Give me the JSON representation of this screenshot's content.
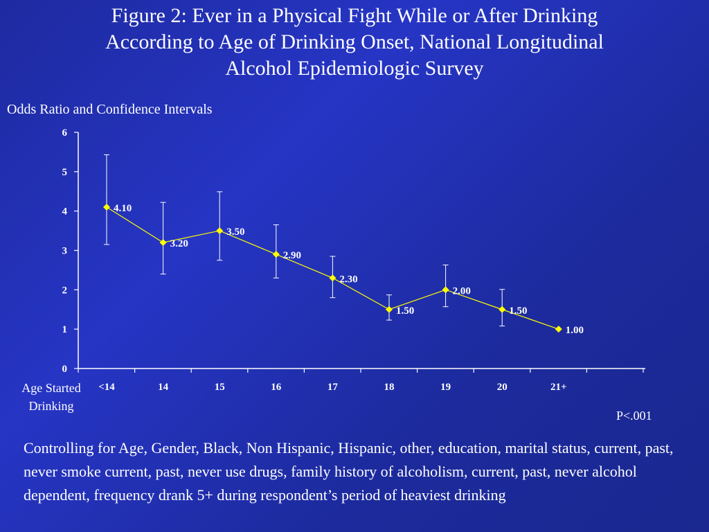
{
  "slide": {
    "title_lines": [
      "Figure 2:  Ever in a Physical Fight While or After Drinking",
      "According to Age of  Drinking Onset,   National Longitudinal",
      "Alcohol Epidemiologic Survey"
    ],
    "x_category_label_lines": [
      "Age Started",
      "Drinking"
    ],
    "p_value": "P<.001",
    "footnote": "Controlling for Age, Gender, Black, Non Hispanic, Hispanic, other, education, marital status, current, past, never smoke current, past, never use drugs,  family history of alcoholism, current, past, never alcohol dependent, frequency  drank 5+ during respondent’s period of heaviest drinking"
  },
  "chart_data": {
    "type": "line",
    "title": "Figure 2:  Ever in a Physical Fight While or After Drinking According to Age of  Drinking Onset,   National Longitudinal Alcohol Epidemiologic Survey",
    "ylabel": "Odds Ratio and Confidence Intervals",
    "xlabel": "Age Started Drinking",
    "categories": [
      "<14",
      "14",
      "15",
      "16",
      "17",
      "18",
      "19",
      "20",
      "21+"
    ],
    "series": [
      {
        "values": [
          4.1,
          3.2,
          3.5,
          2.9,
          2.3,
          1.5,
          2.0,
          1.5,
          1.0
        ],
        "labels": [
          "4.10",
          "3.20",
          "3.50",
          "2.90",
          "2.30",
          "1.50",
          "2.00",
          "1.50",
          "1.00"
        ],
        "ci_lower": [
          3.15,
          2.4,
          2.75,
          2.3,
          1.8,
          1.23,
          1.57,
          1.08,
          null
        ],
        "ci_upper": [
          5.43,
          4.22,
          4.49,
          3.65,
          2.85,
          1.87,
          2.63,
          2.01,
          null
        ]
      }
    ],
    "ylim": [
      0,
      6
    ],
    "yticks": [
      0,
      1,
      2,
      3,
      4,
      5,
      6
    ],
    "grid": false,
    "legend": "none",
    "colors": {
      "line": "#ffff00",
      "marker": "#ffff00",
      "axis": "#ffffff",
      "error_bars": "#ffffff",
      "text": "#ffffff"
    }
  }
}
